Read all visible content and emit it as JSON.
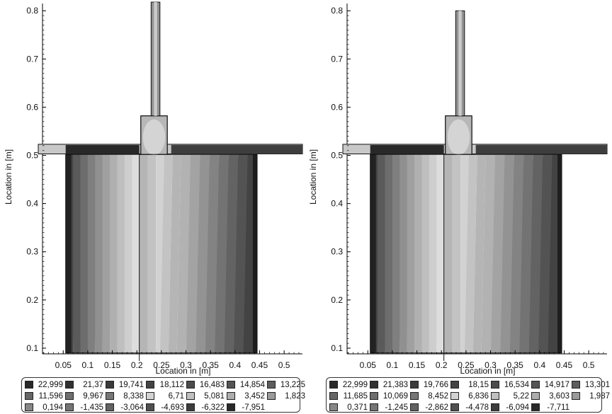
{
  "chart_data": [
    {
      "type": "heatmap",
      "xlabel": "Location in [m]",
      "ylabel": "Location in [m]",
      "x_ticks": [
        "0.05",
        "0.1",
        "0.15",
        "0.2",
        "0.25",
        "0.3",
        "0.35",
        "0.4",
        "0.45",
        "0.5"
      ],
      "y_ticks": [
        "0.1",
        "0.2",
        "0.3",
        "0.4",
        "0.5",
        "0.6",
        "0.7",
        "0.8"
      ],
      "legend": [
        "22,999",
        "21,37",
        "19,741",
        "18,112",
        "16,483",
        "14,854",
        "13,225",
        "11,596",
        "9,967",
        "8,338",
        "6,71",
        "5,081",
        "3,452",
        "1,823",
        "0,194",
        "-1,435",
        "-3,064",
        "-4,693",
        "-6,322",
        "-7,951"
      ]
    },
    {
      "type": "heatmap",
      "xlabel": "Location in [m]",
      "ylabel": "Location in [m]",
      "x_ticks": [
        "0.05",
        "0.1",
        "0.15",
        "0.2",
        "0.25",
        "0.3",
        "0.35",
        "0.4",
        "0.45",
        "0.5"
      ],
      "y_ticks": [
        "0.1",
        "0.2",
        "0.3",
        "0.4",
        "0.5",
        "0.6",
        "0.7",
        "0.8"
      ],
      "legend": [
        "22,999",
        "21,383",
        "19,766",
        "18,15",
        "16,534",
        "14,917",
        "13,301",
        "11,685",
        "10,069",
        "8,452",
        "6,836",
        "5,22",
        "3,603",
        "1,987",
        "0,371",
        "-1,245",
        "-2,862",
        "-4,478",
        "-6,094",
        "-7,711"
      ]
    }
  ],
  "colors": {
    "scale_dark": "#1e1e1e",
    "scale_light": "#f2f2f2",
    "outline": "#111111"
  }
}
